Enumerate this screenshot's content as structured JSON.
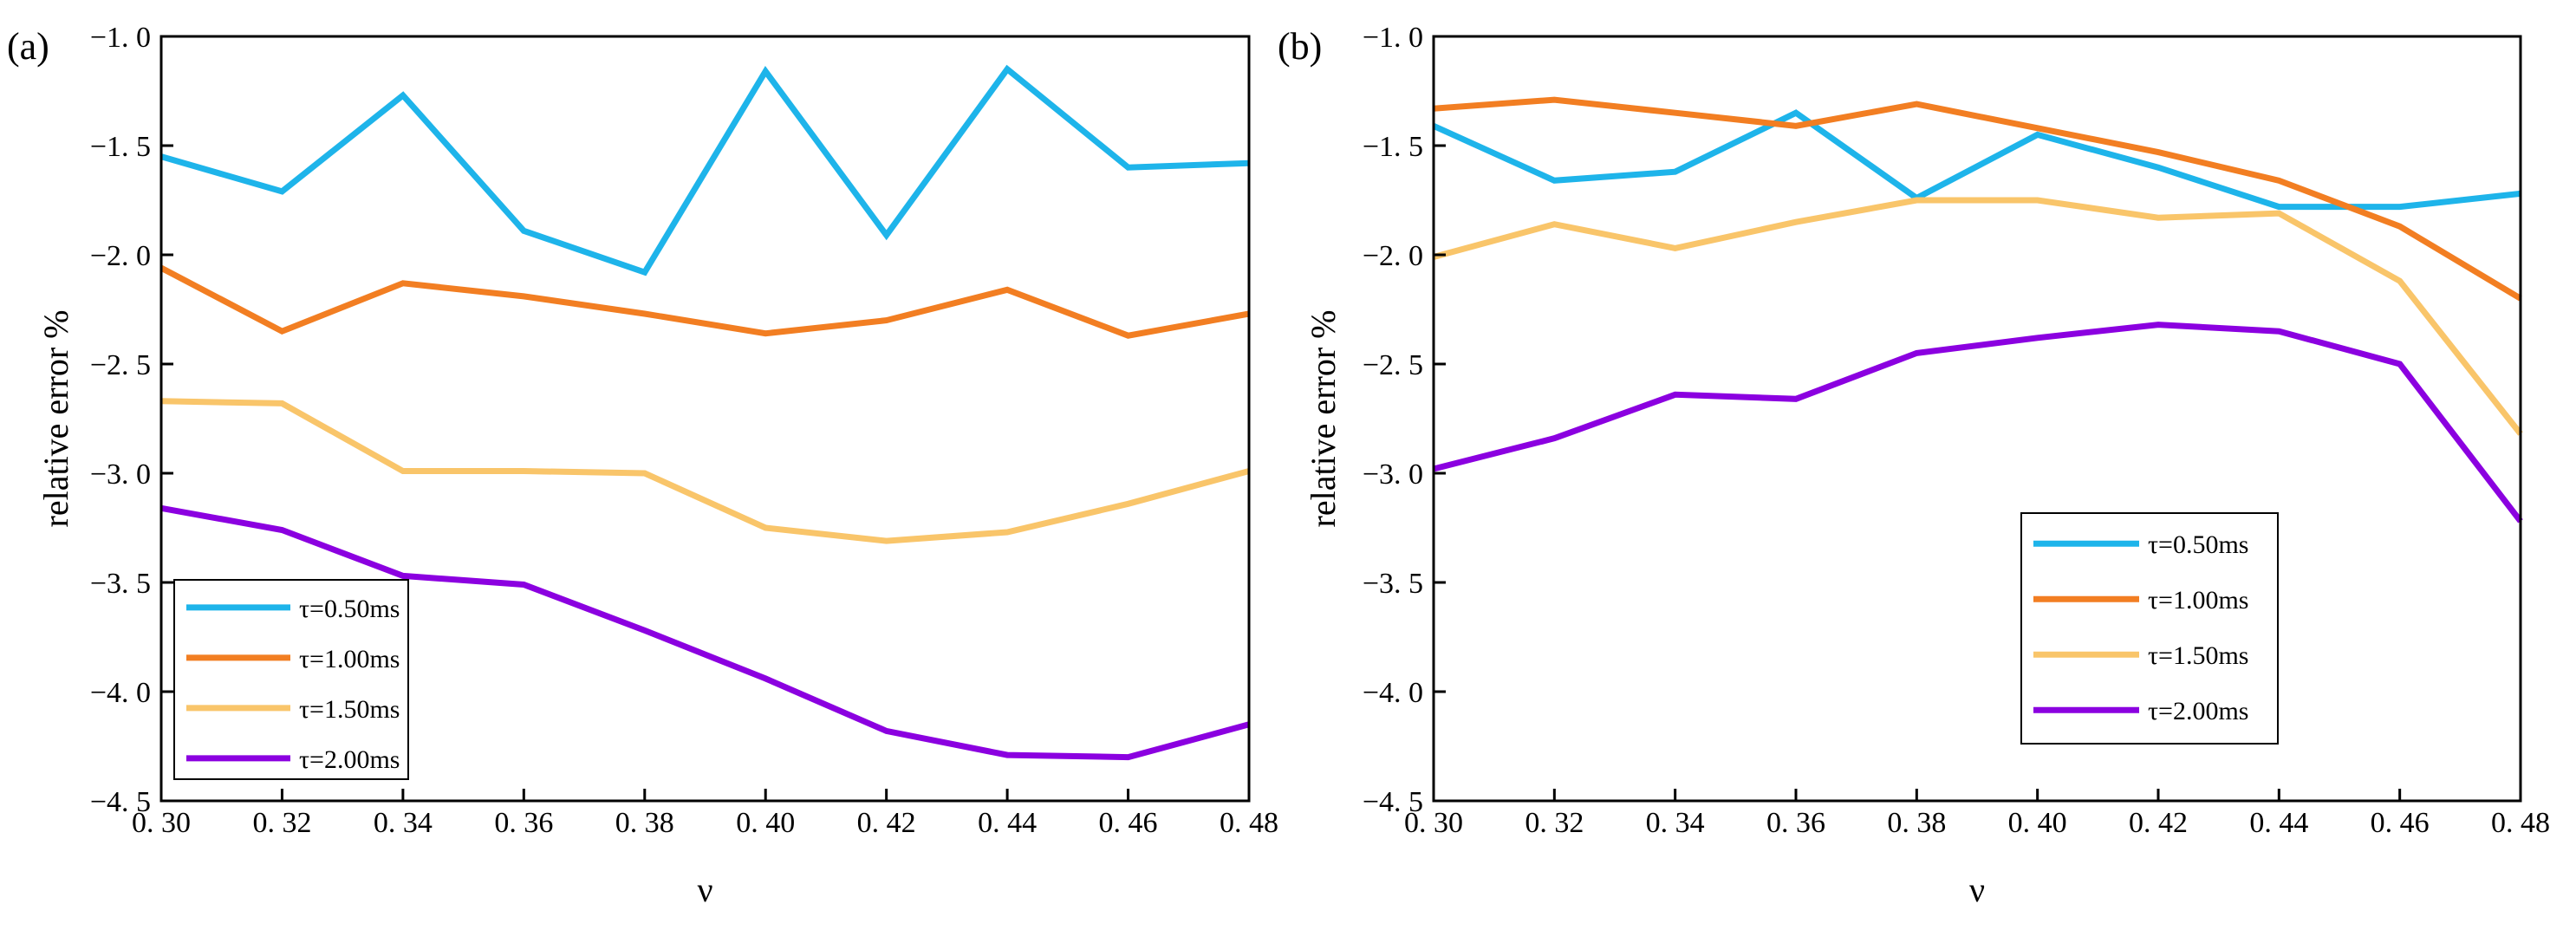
{
  "chart_data": [
    {
      "type": "line",
      "panel_label": "(a)",
      "xlabel": "ν",
      "ylabel": "relative error %",
      "x": [
        0.3,
        0.32,
        0.34,
        0.36,
        0.38,
        0.4,
        0.42,
        0.44,
        0.46,
        0.48
      ],
      "x_tick_labels": [
        "0. 30",
        "0. 32",
        "0. 34",
        "0. 36",
        "0. 38",
        "0. 40",
        "0. 42",
        "0. 44",
        "0. 46",
        "0. 48"
      ],
      "xlim": [
        0.3,
        0.48
      ],
      "ylim": [
        -4.5,
        -1.0
      ],
      "y_ticks": [
        -1.0,
        -1.5,
        -2.0,
        -2.5,
        -3.0,
        -3.5,
        -4.0,
        -4.5
      ],
      "y_tick_labels": [
        "−1. 0",
        "−1. 5",
        "−2. 0",
        "−2. 5",
        "−3. 0",
        "−3. 5",
        "−4. 0",
        "−4. 5"
      ],
      "legend_position": "bottom-left",
      "grid": false,
      "series": [
        {
          "name": "τ=0.50ms",
          "color": "#1EB4EA",
          "values": [
            -1.55,
            -1.71,
            -1.27,
            -1.89,
            -2.08,
            -1.16,
            -1.91,
            -1.15,
            -1.6,
            -1.58
          ]
        },
        {
          "name": "τ=1.00ms",
          "color": "#F27E22",
          "values": [
            -2.06,
            -2.35,
            -2.13,
            -2.19,
            -2.27,
            -2.36,
            -2.3,
            -2.16,
            -2.37,
            -2.27
          ]
        },
        {
          "name": "τ=1.50ms",
          "color": "#F9C56A",
          "values": [
            -2.67,
            -2.68,
            -2.99,
            -2.99,
            -3.0,
            -3.25,
            -3.31,
            -3.27,
            -3.14,
            -2.99
          ]
        },
        {
          "name": "τ=2.00ms",
          "color": "#8B00E0",
          "values": [
            -3.16,
            -3.26,
            -3.47,
            -3.51,
            -3.72,
            -3.94,
            -4.18,
            -4.29,
            -4.3,
            -4.15
          ]
        }
      ]
    },
    {
      "type": "line",
      "panel_label": "(b)",
      "xlabel": "ν",
      "ylabel": "relative error %",
      "x": [
        0.3,
        0.32,
        0.34,
        0.36,
        0.38,
        0.4,
        0.42,
        0.44,
        0.46,
        0.48
      ],
      "x_tick_labels": [
        "0. 30",
        "0. 32",
        "0. 34",
        "0. 36",
        "0. 38",
        "0. 40",
        "0. 42",
        "0. 44",
        "0. 46",
        "0. 48"
      ],
      "xlim": [
        0.3,
        0.48
      ],
      "ylim": [
        -4.5,
        -1.0
      ],
      "y_ticks": [
        -1.0,
        -1.5,
        -2.0,
        -2.5,
        -3.0,
        -3.5,
        -4.0,
        -4.5
      ],
      "y_tick_labels": [
        "−1. 0",
        "−1. 5",
        "−2. 0",
        "−2. 5",
        "−3. 0",
        "−3. 5",
        "−4. 0",
        "−4. 5"
      ],
      "legend_position": "center-right",
      "grid": false,
      "series": [
        {
          "name": "τ=0.50ms",
          "color": "#1EB4EA",
          "values": [
            -1.41,
            -1.66,
            -1.62,
            -1.35,
            -1.74,
            -1.45,
            -1.6,
            -1.78,
            -1.78,
            -1.72
          ]
        },
        {
          "name": "τ=1.00ms",
          "color": "#F27E22",
          "values": [
            -1.33,
            -1.29,
            -1.35,
            -1.41,
            -1.31,
            -1.42,
            -1.53,
            -1.66,
            -1.87,
            -2.2
          ]
        },
        {
          "name": "τ=1.50ms",
          "color": "#F9C56A",
          "values": [
            -2.01,
            -1.86,
            -1.97,
            -1.85,
            -1.75,
            -1.75,
            -1.83,
            -1.81,
            -2.12,
            -2.82
          ]
        },
        {
          "name": "τ=2.00ms",
          "color": "#8B00E0",
          "values": [
            -2.98,
            -2.84,
            -2.64,
            -2.66,
            -2.45,
            -2.38,
            -2.32,
            -2.35,
            -2.5,
            -3.22
          ]
        }
      ]
    }
  ]
}
